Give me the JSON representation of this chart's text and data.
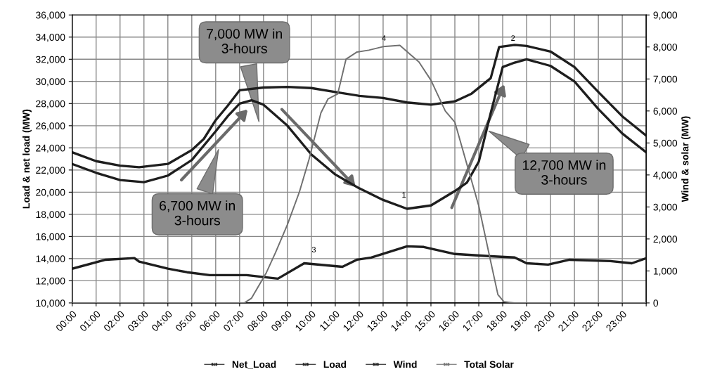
{
  "chart_data": {
    "type": "line",
    "ylabel": "Load & net load (MW)",
    "y2label": "Wind & solar (MW)",
    "xlim": [
      0,
      24
    ],
    "xticks": [
      {
        "value": 0,
        "label": "00:00"
      },
      {
        "value": 1,
        "label": "01:00"
      },
      {
        "value": 2,
        "label": "02:00"
      },
      {
        "value": 3,
        "label": "03:00"
      },
      {
        "value": 4,
        "label": "04:00"
      },
      {
        "value": 5,
        "label": "05:00"
      },
      {
        "value": 6,
        "label": "06:00"
      },
      {
        "value": 7,
        "label": "07:00"
      },
      {
        "value": 8,
        "label": "08:00"
      },
      {
        "value": 9,
        "label": "09:00"
      },
      {
        "value": 10,
        "label": "10:00"
      },
      {
        "value": 11,
        "label": "11:00"
      },
      {
        "value": 12,
        "label": "12:00"
      },
      {
        "value": 13,
        "label": "13:00"
      },
      {
        "value": 14,
        "label": "14:00"
      },
      {
        "value": 15,
        "label": "15:00"
      },
      {
        "value": 16,
        "label": "16:00"
      },
      {
        "value": 17,
        "label": "17:00"
      },
      {
        "value": 18,
        "label": "18:00"
      },
      {
        "value": 19,
        "label": "19:00"
      },
      {
        "value": 20,
        "label": "20:00"
      },
      {
        "value": 21,
        "label": "21:00"
      },
      {
        "value": 22,
        "label": "22:00"
      },
      {
        "value": 23,
        "label": "23:00"
      },
      {
        "value": 24,
        "label": null
      }
    ],
    "ylim": [
      10000,
      36000
    ],
    "yticks": [
      {
        "value": 10000,
        "label": "10,000"
      },
      {
        "value": 12000,
        "label": "12,000"
      },
      {
        "value": 14000,
        "label": "14,000"
      },
      {
        "value": 16000,
        "label": "16,000"
      },
      {
        "value": 18000,
        "label": "18,000"
      },
      {
        "value": 20000,
        "label": "20,000"
      },
      {
        "value": 22000,
        "label": "22,000"
      },
      {
        "value": 24000,
        "label": "24,000"
      },
      {
        "value": 26000,
        "label": "26,000"
      },
      {
        "value": 28000,
        "label": "28,000"
      },
      {
        "value": 30000,
        "label": "30,000"
      },
      {
        "value": 32000,
        "label": "32,000"
      },
      {
        "value": 34000,
        "label": "34,000"
      },
      {
        "value": 36000,
        "label": "36,000"
      }
    ],
    "y2lim": [
      0,
      9000
    ],
    "y2ticks": [
      0,
      {
        "value": 1000,
        "label": "1,000"
      },
      {
        "value": 2000,
        "label": "2,000"
      },
      {
        "value": 3000,
        "label": "3,000"
      },
      {
        "value": 4000,
        "label": "4,000"
      },
      {
        "value": 5000,
        "label": "5,000"
      },
      {
        "value": 6000,
        "label": "6,000"
      },
      {
        "value": 7000,
        "label": "7,000"
      },
      {
        "value": 8000,
        "label": "8,000"
      },
      {
        "value": 9000,
        "label": "9,000"
      }
    ],
    "grid": true,
    "legend": "bottom",
    "line_style": "solid",
    "marker": "none",
    "series": [
      {
        "name": "Net_Load",
        "color": "#1e1e1e",
        "x": [
          0,
          1,
          2,
          3,
          4,
          5,
          6,
          6.5,
          7,
          7.5,
          8,
          9,
          10,
          11,
          12,
          13,
          14,
          15,
          16,
          16.5,
          17,
          17.5,
          18,
          18.5,
          19,
          20,
          21,
          22,
          23,
          24
        ],
        "values": [
          22550,
          21750,
          21100,
          20900,
          21500,
          22900,
          25500,
          26850,
          28000,
          28300,
          27900,
          26000,
          23400,
          21600,
          20350,
          19300,
          18500,
          18800,
          20100,
          20850,
          22750,
          27150,
          31300,
          31700,
          32000,
          31400,
          30000,
          27500,
          25300,
          23600
        ]
      },
      {
        "name": "Load",
        "color": "#1e1e1e",
        "x": [
          0,
          1,
          2,
          2.8,
          4,
          5,
          5.5,
          6,
          6.5,
          7,
          8,
          9,
          10,
          11,
          12,
          13,
          14,
          15,
          16,
          16.7,
          17.5,
          17.85,
          18.5,
          19,
          20,
          21,
          22,
          23,
          24
        ],
        "values": [
          23600,
          22800,
          22400,
          22250,
          22550,
          23800,
          24800,
          26500,
          27800,
          29200,
          29450,
          29500,
          29400,
          29050,
          28700,
          28500,
          28100,
          27900,
          28200,
          28900,
          30300,
          33100,
          33300,
          33200,
          32700,
          31300,
          29050,
          26850,
          25100
        ]
      },
      {
        "name": "Wind",
        "color": "#1e1e1e",
        "axis": "y2",
        "x": [
          0,
          1.4,
          2.6,
          2.8,
          4,
          4.8,
          5.75,
          7.3,
          8.6,
          9.7,
          11.3,
          11.9,
          12.5,
          14,
          14.7,
          16,
          17.5,
          18.5,
          19,
          19.9,
          20.8,
          22.5,
          23.4,
          24
        ],
        "values": [
          1070,
          1350,
          1400,
          1290,
          1070,
          960,
          870,
          870,
          760,
          1240,
          1130,
          1350,
          1420,
          1770,
          1750,
          1530,
          1460,
          1420,
          1240,
          1200,
          1350,
          1310,
          1240,
          1400
        ]
      },
      {
        "name": "Total Solar",
        "color": "#707070",
        "axis": "y2",
        "x": [
          0,
          7.2,
          7.5,
          8.1,
          8.5,
          9,
          9.5,
          9.9,
          10.4,
          10.7,
          11.1,
          11.45,
          11.9,
          12.4,
          13,
          13.7,
          14.5,
          15,
          15.6,
          16,
          16.5,
          17,
          17.5,
          17.8,
          18.05,
          18.5,
          24
        ],
        "values": [
          0,
          0,
          150,
          920,
          1570,
          2450,
          3470,
          4480,
          5940,
          6380,
          6530,
          7620,
          7840,
          7900,
          8010,
          8050,
          7530,
          6960,
          6000,
          5650,
          4340,
          3030,
          1290,
          260,
          40,
          0,
          0
        ]
      }
    ],
    "annotations": [
      "1",
      "2",
      "3",
      "4",
      "7,000 MW in\n3-hours",
      "6,700 MW in\n3-hours",
      "12,700 MW in\n3-hours"
    ]
  }
}
